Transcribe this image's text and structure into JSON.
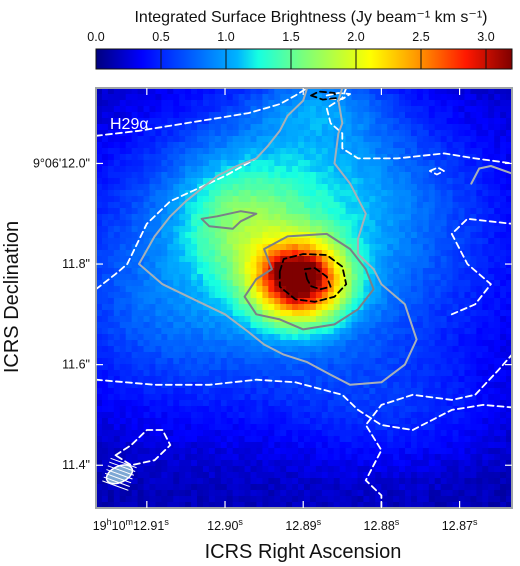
{
  "chart_data": {
    "type": "heatmap",
    "title": "Integrated Surface Brightness (Jy beam⁻¹ km s⁻¹)",
    "panel_label": "H29α",
    "xlabel": "ICRS Right Ascension",
    "ylabel": "ICRS Declination",
    "colorbar": {
      "min": 0.0,
      "max": 3.2,
      "ticks": [
        0.0,
        0.5,
        1.0,
        1.5,
        2.0,
        2.5,
        3.0
      ],
      "tick_labels": [
        "0.0",
        "0.5",
        "1.0",
        "1.5",
        "2.0",
        "2.5",
        "3.0"
      ],
      "colormap": "jet"
    },
    "x_axis": {
      "units": "seconds of RA (19h10m)",
      "range": [
        12.9165,
        12.8633
      ],
      "ticks": [
        12.91,
        12.9,
        12.89,
        12.88,
        12.87
      ],
      "tick_labels": [
        {
          "prefix": "19",
          "h": "h",
          "mid": "10",
          "m": "m",
          "value": "12.91",
          "s": "s"
        },
        {
          "value": "12.90",
          "s": "s"
        },
        {
          "value": "12.89",
          "s": "s"
        },
        {
          "value": "12.88",
          "s": "s"
        },
        {
          "value": "12.87",
          "s": "s"
        }
      ]
    },
    "y_axis": {
      "units": "arcsec offset of Dec (9°06′)",
      "range": [
        11.315,
        12.15
      ],
      "ticks": [
        12.0,
        11.8,
        11.6,
        11.4
      ],
      "tick_labels": [
        "9°06'12.0\"",
        "11.8\"",
        "11.6\"",
        "11.4\""
      ]
    },
    "emission_components": [
      {
        "ra": 12.8905,
        "dec": 11.765,
        "peak": 2.4,
        "sigma_ra": 0.0042,
        "sigma_dec": 0.058
      },
      {
        "ra": 12.8925,
        "dec": 11.79,
        "peak": 0.5,
        "sigma_ra": 0.0012,
        "sigma_dec": 0.012
      },
      {
        "ra": 12.8895,
        "dec": 11.79,
        "peak": 0.4,
        "sigma_ra": 0.0012,
        "sigma_dec": 0.012
      },
      {
        "ra": 12.89,
        "dec": 11.83,
        "peak": 0.9,
        "sigma_ra": 0.017,
        "sigma_dec": 0.2
      },
      {
        "ra": 12.8985,
        "dec": 11.88,
        "peak": 0.55,
        "sigma_ra": 0.005,
        "sigma_dec": 0.08
      },
      {
        "ra": 12.89,
        "dec": 11.98,
        "peak": 0.35,
        "sigma_ra": 0.012,
        "sigma_dec": 0.1
      },
      {
        "ra": 12.888,
        "dec": 12.12,
        "peak": 0.45,
        "sigma_ra": 0.006,
        "sigma_dec": 0.05
      },
      {
        "ra": 12.878,
        "dec": 11.5,
        "peak": 0.25,
        "sigma_ra": 0.01,
        "sigma_dec": 0.08
      },
      {
        "ra": 12.91,
        "dec": 11.7,
        "peak": 0.3,
        "sigma_ra": 0.01,
        "sigma_dec": 0.15
      }
    ],
    "background_level": 0.12,
    "contours": [
      {
        "style": "dashed-white",
        "path": [
          [
            12.9165,
            12.055
          ],
          [
            12.911,
            12.065
          ],
          [
            12.903,
            12.085
          ],
          [
            12.897,
            12.1
          ],
          [
            12.893,
            12.118
          ],
          [
            12.891,
            12.135
          ],
          [
            12.8895,
            12.15
          ]
        ]
      },
      {
        "style": "dashed-white",
        "path": [
          [
            12.8845,
            12.15
          ],
          [
            12.885,
            12.13
          ],
          [
            12.887,
            12.11
          ],
          [
            12.8865,
            12.08
          ],
          [
            12.885,
            12.06
          ],
          [
            12.885,
            12.03
          ],
          [
            12.883,
            12.01
          ],
          [
            12.878,
            12.01
          ],
          [
            12.872,
            12.02
          ],
          [
            12.868,
            12.01
          ],
          [
            12.8633,
            12.0
          ]
        ]
      },
      {
        "style": "dashed-white",
        "path": [
          [
            12.9165,
            11.75
          ],
          [
            12.914,
            11.78
          ],
          [
            12.9125,
            11.8
          ],
          [
            12.91,
            11.88
          ],
          [
            12.907,
            11.925
          ],
          [
            12.9,
            11.975
          ],
          [
            12.896,
            12.01
          ]
        ]
      },
      {
        "style": "dashed-white",
        "path": [
          [
            12.9165,
            11.57
          ],
          [
            12.909,
            11.56
          ],
          [
            12.902,
            11.56
          ],
          [
            12.896,
            11.57
          ],
          [
            12.891,
            11.565
          ],
          [
            12.885,
            11.54
          ],
          [
            12.883,
            11.51
          ],
          [
            12.88,
            11.48
          ],
          [
            12.876,
            11.47
          ],
          [
            12.871,
            11.51
          ],
          [
            12.867,
            11.52
          ],
          [
            12.8633,
            11.515
          ]
        ]
      },
      {
        "style": "dashed-white",
        "path": [
          [
            12.88,
            11.315
          ],
          [
            12.88,
            11.34
          ],
          [
            12.882,
            11.37
          ],
          [
            12.881,
            11.4
          ],
          [
            12.88,
            11.43
          ],
          [
            12.882,
            11.48
          ],
          [
            12.88,
            11.52
          ],
          [
            12.876,
            11.54
          ],
          [
            12.871,
            11.53
          ],
          [
            12.868,
            11.54
          ],
          [
            12.865,
            11.59
          ],
          [
            12.8633,
            11.62
          ]
        ]
      },
      {
        "style": "dashed-white",
        "path": [
          [
            12.871,
            11.7
          ],
          [
            12.868,
            11.72
          ],
          [
            12.866,
            11.76
          ],
          [
            12.869,
            11.8
          ],
          [
            12.871,
            11.86
          ],
          [
            12.869,
            11.89
          ],
          [
            12.8633,
            11.88
          ]
        ]
      },
      {
        "style": "dashed-white",
        "closed": true,
        "path": [
          [
            12.914,
            11.42
          ],
          [
            12.912,
            11.44
          ],
          [
            12.91,
            11.47
          ],
          [
            12.908,
            11.47
          ],
          [
            12.907,
            11.44
          ],
          [
            12.909,
            11.41
          ],
          [
            12.912,
            11.4
          ]
        ]
      },
      {
        "style": "dashed-white",
        "closed": true,
        "path": [
          [
            12.887,
            12.135
          ],
          [
            12.8855,
            12.14
          ],
          [
            12.884,
            12.138
          ],
          [
            12.885,
            12.128
          ],
          [
            12.8865,
            12.128
          ]
        ]
      },
      {
        "style": "dashed-white",
        "closed": true,
        "path": [
          [
            12.8738,
            11.985
          ],
          [
            12.8728,
            11.992
          ],
          [
            12.872,
            11.985
          ],
          [
            12.8729,
            11.978
          ]
        ]
      },
      {
        "style": "solid-gray",
        "path": [
          [
            12.8895,
            12.15
          ],
          [
            12.89,
            12.125
          ],
          [
            12.892,
            12.095
          ],
          [
            12.893,
            12.065
          ],
          [
            12.8945,
            12.035
          ],
          [
            12.896,
            12.01
          ],
          [
            12.8985,
            11.995
          ],
          [
            12.901,
            11.975
          ],
          [
            12.905,
            11.925
          ],
          [
            12.907,
            11.895
          ],
          [
            12.909,
            11.855
          ],
          [
            12.911,
            11.8
          ],
          [
            12.908,
            11.76
          ],
          [
            12.904,
            11.73
          ],
          [
            12.9,
            11.7
          ],
          [
            12.897,
            11.665
          ],
          [
            12.895,
            11.64
          ],
          [
            12.8925,
            11.62
          ],
          [
            12.8895,
            11.605
          ],
          [
            12.8865,
            11.58
          ],
          [
            12.884,
            11.56
          ],
          [
            12.88,
            11.565
          ],
          [
            12.877,
            11.6
          ],
          [
            12.8755,
            11.65
          ],
          [
            12.877,
            11.72
          ],
          [
            12.88,
            11.76
          ],
          [
            12.881,
            11.79
          ],
          [
            12.883,
            11.82
          ],
          [
            12.883,
            11.85
          ],
          [
            12.882,
            11.9
          ],
          [
            12.884,
            11.96
          ],
          [
            12.886,
            12.0
          ],
          [
            12.8855,
            12.06
          ],
          [
            12.885,
            12.08
          ],
          [
            12.8855,
            12.125
          ],
          [
            12.885,
            12.15
          ]
        ]
      },
      {
        "style": "solid-gray",
        "path": [
          [
            12.8685,
            11.96
          ],
          [
            12.8675,
            11.99
          ],
          [
            12.866,
            11.995
          ],
          [
            12.8633,
            11.98
          ]
        ]
      },
      {
        "style": "solid-gray-dark",
        "closed": true,
        "path": [
          [
            12.898,
            11.885
          ],
          [
            12.896,
            11.9
          ],
          [
            12.898,
            11.905
          ],
          [
            12.901,
            11.895
          ],
          [
            12.903,
            11.89
          ],
          [
            12.902,
            11.875
          ],
          [
            12.899,
            11.87
          ]
        ]
      },
      {
        "style": "solid-gray-dark",
        "closed": true,
        "path": [
          [
            12.894,
            11.79
          ],
          [
            12.895,
            11.83
          ],
          [
            12.892,
            11.855
          ],
          [
            12.887,
            11.86
          ],
          [
            12.884,
            11.83
          ],
          [
            12.882,
            11.79
          ],
          [
            12.881,
            11.75
          ],
          [
            12.883,
            11.71
          ],
          [
            12.886,
            11.68
          ],
          [
            12.89,
            11.67
          ],
          [
            12.893,
            11.69
          ],
          [
            12.896,
            11.7
          ],
          [
            12.8975,
            11.735
          ],
          [
            12.896,
            11.77
          ]
        ]
      },
      {
        "style": "dashed-black",
        "closed": true,
        "path": [
          [
            12.893,
            11.785
          ],
          [
            12.8925,
            11.81
          ],
          [
            12.89,
            11.82
          ],
          [
            12.887,
            11.818
          ],
          [
            12.885,
            11.795
          ],
          [
            12.8845,
            11.76
          ],
          [
            12.886,
            11.735
          ],
          [
            12.8885,
            11.725
          ],
          [
            12.891,
            11.73
          ],
          [
            12.893,
            11.755
          ]
        ]
      },
      {
        "style": "dashed-black",
        "closed": true,
        "path": [
          [
            12.8895,
            11.77
          ],
          [
            12.8898,
            11.79
          ],
          [
            12.8885,
            11.792
          ],
          [
            12.887,
            11.775
          ],
          [
            12.8865,
            11.755
          ],
          [
            12.8878,
            11.75
          ],
          [
            12.889,
            11.756
          ]
        ]
      },
      {
        "style": "dashed-black",
        "closed": true,
        "path": [
          [
            12.889,
            12.135
          ],
          [
            12.888,
            12.143
          ],
          [
            12.886,
            12.14
          ],
          [
            12.8858,
            12.13
          ],
          [
            12.8875,
            12.127
          ]
        ]
      }
    ],
    "beam": {
      "ra": 12.9135,
      "dec": 11.382,
      "major_arcsec": 0.055,
      "minor_arcsec": 0.032,
      "pa_deg": -25
    }
  },
  "colors": {
    "white_contour": "#ffffff",
    "gray_contour": "#a7b0b8",
    "dark_gray_contour": "#7a8088",
    "black_contour": "#000000",
    "frame": "#9ea3a8",
    "beam_fill": "#7ea8d4"
  }
}
